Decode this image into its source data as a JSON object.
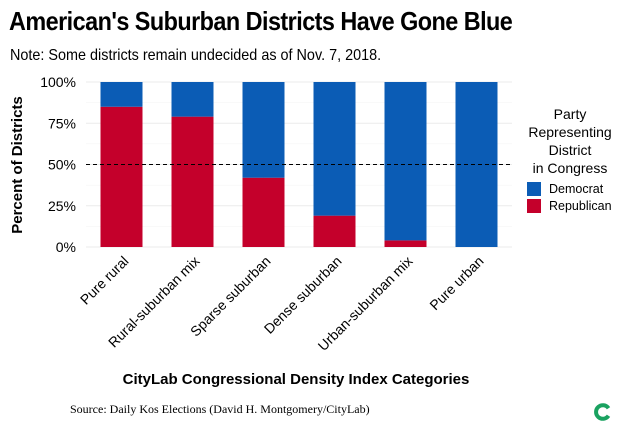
{
  "header": {
    "title": "American's Suburban Districts Have Gone Blue",
    "subtitle": "Note: Some districts remain undecided as of Nov. 7, 2018."
  },
  "footer": {
    "source": "Source: Daily Kos Elections (David H. Montgomery/CityLab)"
  },
  "chart_data": {
    "type": "bar",
    "stacked": true,
    "categories": [
      "Pure rural",
      "Rural-suburban mix",
      "Sparse suburban",
      "Dense suburban",
      "Urban-suburban mix",
      "Pure urban"
    ],
    "series": [
      {
        "name": "Republican",
        "color": "#c4002b",
        "values": [
          85,
          79,
          42,
          19,
          4,
          0
        ]
      },
      {
        "name": "Democrat",
        "color": "#0b5cb5",
        "values": [
          15,
          21,
          58,
          81,
          96,
          100
        ]
      }
    ],
    "xlabel": "CityLab Congressional Density Index Categories",
    "ylabel": "Percent of Districts",
    "ylim": [
      0,
      100
    ],
    "yticks": [
      0,
      25,
      50,
      75,
      100
    ],
    "ytick_labels": [
      "0%",
      "25%",
      "50%",
      "75%",
      "100%"
    ],
    "reference_line": {
      "y": 50,
      "style": "dashed"
    },
    "legend": {
      "title_lines": [
        "Party",
        "Representing",
        "District",
        "in Congress"
      ],
      "placement": "right",
      "order": [
        "Democrat",
        "Republican"
      ]
    },
    "grid": true
  },
  "logo": {
    "name": "citylab-logo-icon",
    "color": "#1aa260"
  }
}
